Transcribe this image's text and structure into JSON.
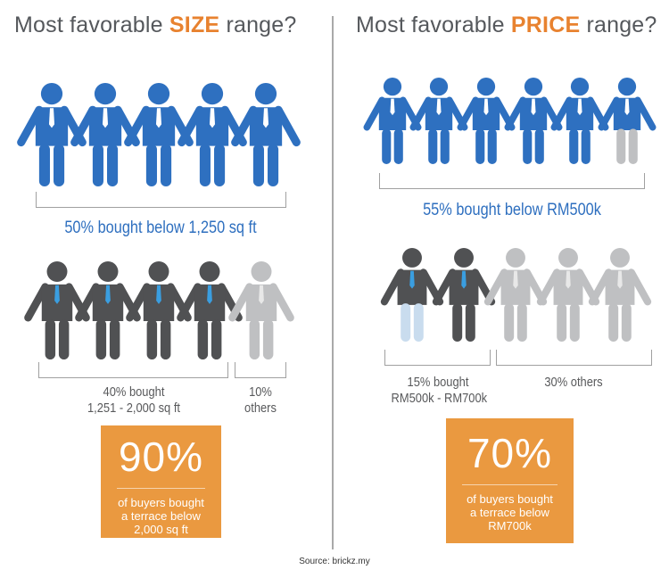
{
  "colors": {
    "blue": "#2e70c0",
    "dark": "#505153",
    "light_gray": "#bfc0c2",
    "pale_blue": "#c9dcee",
    "tie_blue": "#3a9ee0",
    "tie_white": "#ffffff",
    "tie_light": "#e8e8e8",
    "orange": "#ea9940",
    "accent_text": "#e8822f"
  },
  "size_panel": {
    "title_prefix": "Most favorable ",
    "title_highlight": "SIZE",
    "title_suffix": " range?",
    "row1": {
      "people": [
        {
          "body": "blue",
          "legs": "blue",
          "tie": "white"
        },
        {
          "body": "blue",
          "legs": "blue",
          "tie": "white"
        },
        {
          "body": "blue",
          "legs": "blue",
          "tie": "white"
        },
        {
          "body": "blue",
          "legs": "blue",
          "tie": "white"
        },
        {
          "body": "blue",
          "legs": "blue",
          "tie": "white"
        }
      ],
      "caption": "50% bought below 1,250 sq ft",
      "percent": 50
    },
    "row2": {
      "people": [
        {
          "body": "dark",
          "legs": "dark",
          "tie": "blue"
        },
        {
          "body": "dark",
          "legs": "dark",
          "tie": "blue"
        },
        {
          "body": "dark",
          "legs": "dark",
          "tie": "blue"
        },
        {
          "body": "dark",
          "legs": "dark",
          "tie": "blue"
        },
        {
          "body": "light",
          "legs": "light",
          "tie": "light"
        }
      ],
      "groups": [
        {
          "line1": "40% bought",
          "line2": "1,251 - 2,000 sq ft",
          "percent": 40
        },
        {
          "line1": "10%",
          "line2": "others",
          "percent": 10
        }
      ]
    },
    "stat": {
      "value": "90%",
      "text_line1": "of buyers bought",
      "text_line2": "a terrace below",
      "text_line3": "2,000 sq ft"
    }
  },
  "price_panel": {
    "title_prefix": "Most favorable ",
    "title_highlight": "PRICE",
    "title_suffix": " range?",
    "row1": {
      "people": [
        {
          "body": "blue",
          "legs": "blue",
          "tie": "white"
        },
        {
          "body": "blue",
          "legs": "blue",
          "tie": "white"
        },
        {
          "body": "blue",
          "legs": "blue",
          "tie": "white"
        },
        {
          "body": "blue",
          "legs": "blue",
          "tie": "white"
        },
        {
          "body": "blue",
          "legs": "blue",
          "tie": "white"
        },
        {
          "body": "blue",
          "legs": "light",
          "tie": "white"
        }
      ],
      "caption": "55% bought below RM500k",
      "percent": 55
    },
    "row2": {
      "people": [
        {
          "body": "dark",
          "legs": "pale",
          "tie": "blue"
        },
        {
          "body": "dark",
          "legs": "dark",
          "tie": "blue"
        },
        {
          "body": "light",
          "legs": "light",
          "tie": "light"
        },
        {
          "body": "light",
          "legs": "light",
          "tie": "light"
        },
        {
          "body": "light",
          "legs": "light",
          "tie": "light"
        }
      ],
      "groups": [
        {
          "line1": "15% bought",
          "line2": "RM500k - RM700k",
          "percent": 15
        },
        {
          "line1": "30% others",
          "percent": 30
        }
      ]
    },
    "stat": {
      "value": "70%",
      "text_line1": "of buyers bought",
      "text_line2": "a terrace below",
      "text_line3": "RM700k"
    }
  },
  "source": "Source: brickz.my"
}
